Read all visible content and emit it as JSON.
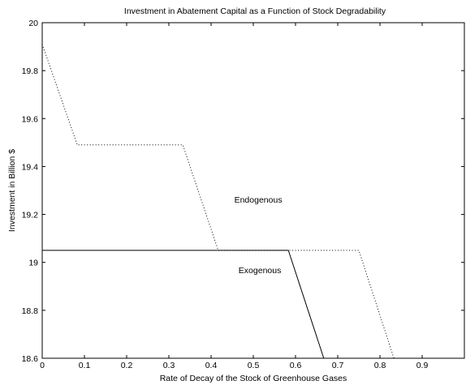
{
  "chart_data": {
    "type": "line",
    "title": "Investment in Abatement Capital as a Function of Stock Degradability",
    "xlabel": "Rate of Decay of the Stock of Greenhouse Gases",
    "ylabel": "Investment in Billion $",
    "xlim": [
      0,
      1
    ],
    "ylim": [
      18.6,
      20
    ],
    "x_ticks": [
      0,
      0.1,
      0.2,
      0.3,
      0.4,
      0.5,
      0.6,
      0.7,
      0.8,
      0.9
    ],
    "y_ticks": [
      18.6,
      18.8,
      19,
      19.2,
      19.4,
      19.6,
      19.8,
      20
    ],
    "x_tick_labels": [
      "0",
      "0.1",
      "0.2",
      "0.3",
      "0.4",
      "0.5",
      "0.6",
      "0.7",
      "0.8",
      "0.9"
    ],
    "y_tick_labels": [
      "18.6",
      "18.8",
      "19",
      "19.2",
      "19.4",
      "19.6",
      "19.8",
      "20"
    ],
    "grid": false,
    "series": [
      {
        "name": "Endogenous",
        "style": "dotted",
        "color": "#000000",
        "x": [
          0,
          0.083,
          0.333,
          0.417,
          0.75,
          0.833,
          1.0
        ],
        "y": [
          19.91,
          19.49,
          19.49,
          19.05,
          19.05,
          18.6,
          18.6
        ]
      },
      {
        "name": "Exogenous",
        "style": "solid",
        "color": "#000000",
        "x": [
          0,
          0.583,
          0.667,
          1.0
        ],
        "y": [
          19.05,
          19.05,
          18.6,
          18.6
        ]
      }
    ],
    "annotations": [
      {
        "text": "Endogenous",
        "x": 0.455,
        "y": 19.25
      },
      {
        "text": "Exogenous",
        "x": 0.465,
        "y": 18.955
      }
    ]
  }
}
